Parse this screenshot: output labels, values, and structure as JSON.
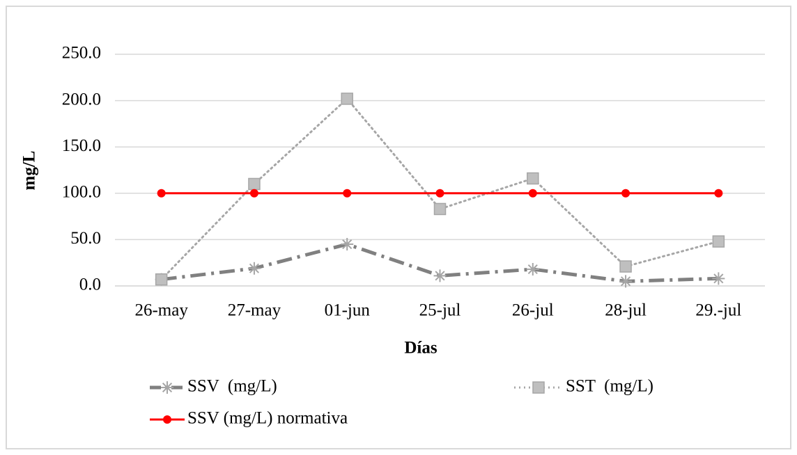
{
  "chart_data": {
    "type": "line",
    "x_label": "Días",
    "y_label": "mg/L",
    "categories": [
      "26-may",
      "27-may",
      "01-jun",
      "25-jul",
      "26-jul",
      "28-jul",
      "29.-jul"
    ],
    "series": [
      {
        "name": "SSV  (mg/L)",
        "color": "#808080",
        "marker_color": "#a6a6a6",
        "marker": "asterisk",
        "linestyle": "dashdot",
        "values": [
          7,
          19,
          45,
          11,
          18,
          5,
          8
        ]
      },
      {
        "name": "SST  (mg/L)",
        "color": "#a6a6a6",
        "marker_color": "#bfbfbf",
        "marker": "square",
        "linestyle": "dotted",
        "values": [
          7,
          110,
          202,
          83,
          116,
          21,
          48
        ]
      },
      {
        "name": "SSV (mg/L) normativa",
        "color": "#ff0000",
        "marker_color": "#ff0000",
        "marker": "circle",
        "linestyle": "solid",
        "values": [
          100,
          100,
          100,
          100,
          100,
          100,
          100
        ]
      }
    ],
    "ylim": [
      0,
      250
    ],
    "yticks": [
      {
        "value": 0,
        "label": "0.0"
      },
      {
        "value": 50,
        "label": "50.0"
      },
      {
        "value": 100,
        "label": "100.0"
      },
      {
        "value": 150,
        "label": "150.0"
      },
      {
        "value": 200,
        "label": "200.0"
      },
      {
        "value": 250,
        "label": "250.0"
      }
    ],
    "grid": true,
    "legend": "bottom"
  }
}
